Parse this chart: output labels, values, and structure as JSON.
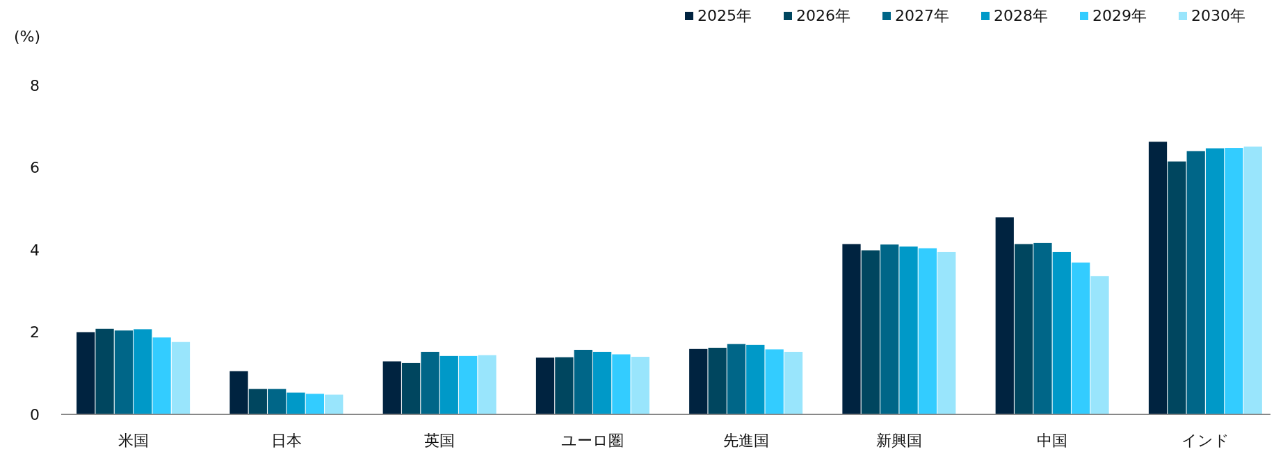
{
  "chart_data": {
    "type": "bar",
    "ylabel": "(%)",
    "categories": [
      "米国",
      "日本",
      "英国",
      "ユーロ圏",
      "先進国",
      "新興国",
      "中国",
      "インド"
    ],
    "series": [
      {
        "name": "2025年",
        "color": "#002340",
        "values": [
          2.0,
          1.05,
          1.29,
          1.38,
          1.59,
          4.14,
          4.79,
          6.63
        ]
      },
      {
        "name": "2026年",
        "color": "#00465f",
        "values": [
          2.08,
          0.62,
          1.25,
          1.39,
          1.62,
          3.99,
          4.14,
          6.15
        ]
      },
      {
        "name": "2027年",
        "color": "#006688",
        "values": [
          2.04,
          0.62,
          1.52,
          1.57,
          1.71,
          4.13,
          4.17,
          6.4
        ]
      },
      {
        "name": "2028年",
        "color": "#0099c8",
        "values": [
          2.07,
          0.53,
          1.42,
          1.52,
          1.69,
          4.08,
          3.95,
          6.47
        ]
      },
      {
        "name": "2029年",
        "color": "#33ccff",
        "values": [
          1.87,
          0.5,
          1.42,
          1.46,
          1.58,
          4.04,
          3.69,
          6.48
        ]
      },
      {
        "name": "2030年",
        "color": "#99e5fc",
        "values": [
          1.76,
          0.48,
          1.44,
          1.4,
          1.52,
          3.95,
          3.36,
          6.51
        ]
      }
    ],
    "ylim": [
      0,
      8
    ],
    "yticks": [
      0,
      2,
      4,
      6,
      8
    ],
    "grid": false,
    "legend": "top right"
  }
}
